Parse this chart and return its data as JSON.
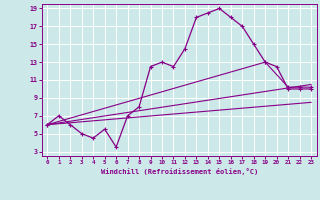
{
  "xlabel": "Windchill (Refroidissement éolien,°C)",
  "xlim": [
    -0.5,
    23.5
  ],
  "ylim": [
    2.5,
    19.5
  ],
  "xticks": [
    0,
    1,
    2,
    3,
    4,
    5,
    6,
    7,
    8,
    9,
    10,
    11,
    12,
    13,
    14,
    15,
    16,
    17,
    18,
    19,
    20,
    21,
    22,
    23
  ],
  "yticks": [
    3,
    5,
    7,
    9,
    11,
    13,
    15,
    17,
    19
  ],
  "bg_color": "#cce8e8",
  "grid_color": "#aad4d4",
  "line_color": "#880088",
  "line1_x": [
    0,
    1,
    2,
    3,
    4,
    5,
    6,
    7,
    8,
    9,
    10,
    11,
    12,
    13,
    14,
    15,
    16,
    17,
    18,
    19,
    20,
    21,
    22,
    23
  ],
  "line1_y": [
    6.0,
    7.0,
    6.0,
    5.0,
    4.5,
    5.5,
    3.5,
    7.0,
    8.0,
    12.5,
    13.0,
    12.5,
    14.5,
    18.0,
    18.5,
    19.0,
    18.0,
    17.0,
    15.0,
    13.0,
    12.5,
    10.0,
    10.0,
    10.0
  ],
  "line2_x": [
    0,
    19,
    21,
    22,
    23
  ],
  "line2_y": [
    6.0,
    13.0,
    10.2,
    10.2,
    10.2
  ],
  "line3_x": [
    0,
    23
  ],
  "line3_y": [
    6.0,
    10.5
  ],
  "line4_x": [
    0,
    23
  ],
  "line4_y": [
    6.0,
    8.5
  ]
}
